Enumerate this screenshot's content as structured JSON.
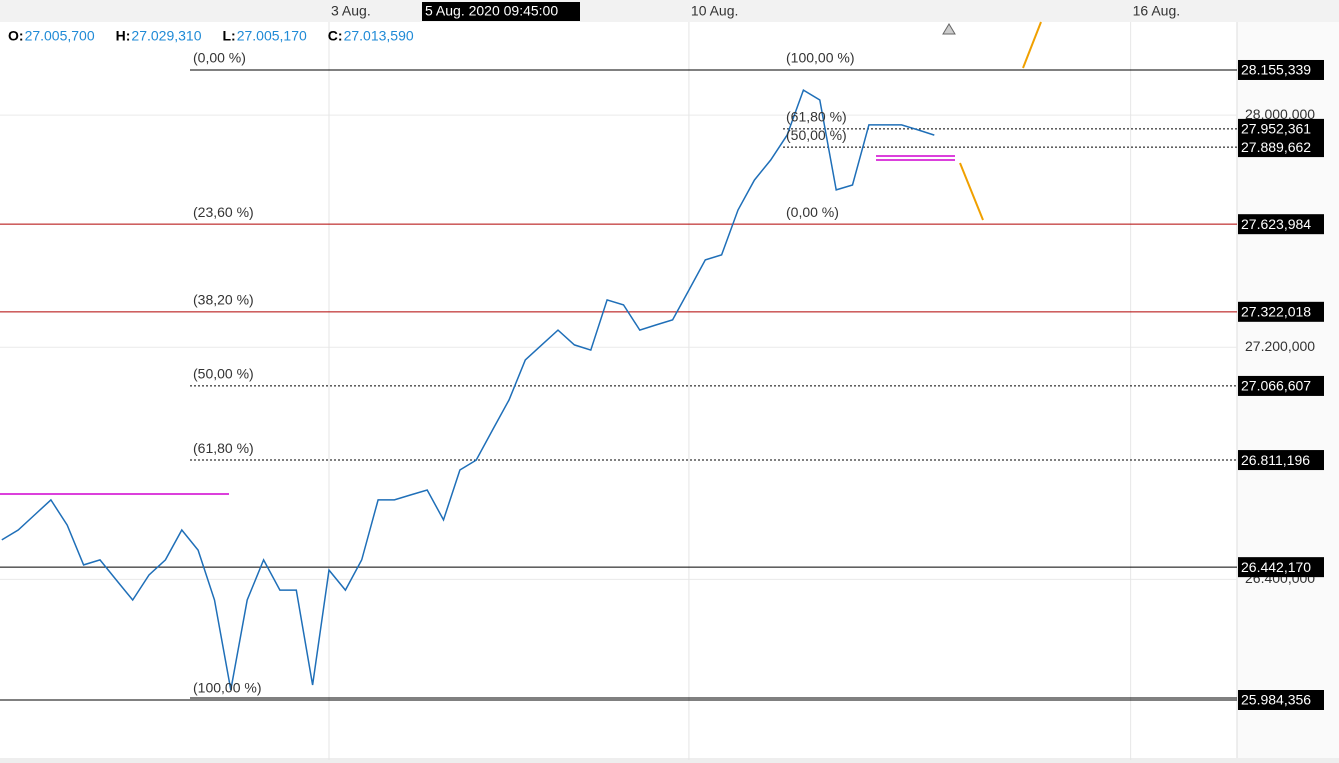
{
  "chart_data": {
    "type": "line",
    "crosshair_label": "5 Aug. 2020 09:45:00",
    "ohlc": [
      {
        "key": "O:",
        "value": "27.005,700"
      },
      {
        "key": "H:",
        "value": "27.029,310"
      },
      {
        "key": "L:",
        "value": "27.005,170"
      },
      {
        "key": "C:",
        "value": "27.013,590"
      }
    ],
    "categories": [
      null,
      null,
      null,
      null,
      null,
      null,
      null,
      null,
      null,
      null,
      null,
      null,
      null,
      null,
      null,
      null,
      null,
      null,
      null,
      null,
      "3 Aug.",
      null,
      null,
      null,
      null,
      null,
      null,
      null,
      null,
      null,
      null,
      null,
      null,
      null,
      null,
      null,
      null,
      null,
      null,
      null,
      null,
      null,
      "10 Aug.",
      null,
      null,
      null,
      null,
      null,
      null,
      null,
      null,
      null,
      null,
      null,
      null,
      null,
      null,
      null,
      null,
      null,
      null,
      null,
      null,
      null,
      null,
      null,
      null,
      null,
      null,
      "16 Aug.",
      null,
      null,
      null,
      null,
      null,
      null
    ],
    "series": [
      {
        "color": "#1f6fb8",
        "values": [
          26536,
          26570,
          26622,
          26674,
          26587,
          26450,
          26467,
          26398,
          26329,
          26415,
          26467,
          26570,
          26501,
          26329,
          26019,
          26329,
          26467,
          26363,
          26363,
          26036,
          26432,
          26363,
          26467,
          26674,
          26674,
          26691,
          26708,
          26605,
          26777,
          26811,
          26915,
          27018,
          27156,
          27208,
          27259,
          27208,
          27190,
          27363,
          27346,
          27259,
          27277,
          27294,
          27397,
          27501,
          27518,
          27673,
          27776,
          27845,
          27931,
          28086,
          28052,
          27742,
          27759,
          27966,
          27966,
          27966,
          27949,
          27931,
          null,
          null,
          null,
          null,
          null,
          null,
          null,
          null,
          null,
          null,
          null,
          null,
          null,
          null,
          null,
          null,
          null,
          null
        ]
      }
    ],
    "ylim": [
      25777.6,
      28320.7
    ],
    "yticks": [
      {
        "value": 28000,
        "label": "28.000,000"
      },
      {
        "value": 27200,
        "label": "27.200,000"
      },
      {
        "value": 26400,
        "label": "26.400,000"
      }
    ],
    "grid": true,
    "levels": [
      {
        "value": 28155.339,
        "label": "28.155,339",
        "color": "#000000",
        "style": "solid"
      },
      {
        "value": 27952.361,
        "label": "27.952,361",
        "color": "#000000",
        "style": "dotted"
      },
      {
        "value": 27889.662,
        "label": "27.889,662",
        "color": "#000000",
        "style": "dotted"
      },
      {
        "value": 27623.984,
        "label": "27.623,984",
        "color": "#b00000",
        "style": "solid"
      },
      {
        "value": 27322.018,
        "label": "27.322,018",
        "color": "#b00000",
        "style": "solid"
      },
      {
        "value": 27066.607,
        "label": "27.066,607",
        "color": "#000000",
        "style": "dotted"
      },
      {
        "value": 26811.196,
        "label": "26.811,196",
        "color": "#000000",
        "style": "dotted"
      },
      {
        "value": 26442.17,
        "label": "26.442,170",
        "color": "#000000",
        "style": "solid"
      },
      {
        "value": 25984.356,
        "label": "25.984,356",
        "color": "#000000",
        "style": "solid"
      }
    ],
    "fib_labels": [
      "(0,00 %)",
      "(23,60 %)",
      "(38,20 %)",
      "(50,00 %)",
      "(61,80 %)",
      "(100,00 %)",
      "(100,00 %)",
      "(61,80 %)",
      "(50,00 %)",
      "(0,00 %)"
    ]
  }
}
